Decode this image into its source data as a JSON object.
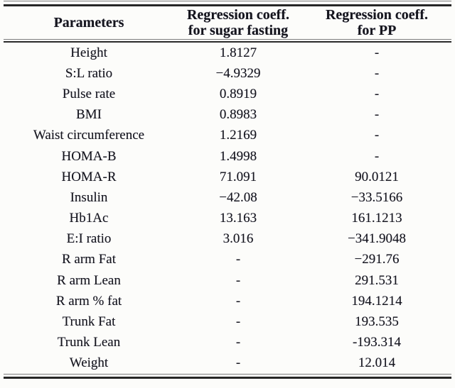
{
  "table": {
    "header": {
      "parameters": "Parameters",
      "col2_line1": "Regression coeff.",
      "col2_line2": "for sugar fasting",
      "col3_line1": "Regression coeff.",
      "col3_line2": "for PP"
    },
    "rows": [
      {
        "parameter": "Height",
        "sugar_fasting": "1.8127",
        "pp": "-"
      },
      {
        "parameter": "S:L ratio",
        "sugar_fasting": "−4.9329",
        "pp": "-"
      },
      {
        "parameter": "Pulse rate",
        "sugar_fasting": "0.8919",
        "pp": "-"
      },
      {
        "parameter": "BMI",
        "sugar_fasting": "0.8983",
        "pp": "-"
      },
      {
        "parameter": "Waist circumference",
        "sugar_fasting": "1.2169",
        "pp": "-"
      },
      {
        "parameter": "HOMA-B",
        "sugar_fasting": "1.4998",
        "pp": "-"
      },
      {
        "parameter": "HOMA-R",
        "sugar_fasting": "71.091",
        "pp": "90.0121"
      },
      {
        "parameter": "Insulin",
        "sugar_fasting": "−42.08",
        "pp": "−33.5166"
      },
      {
        "parameter": "Hb1Ac",
        "sugar_fasting": "13.163",
        "pp": "161.1213"
      },
      {
        "parameter": "E:I ratio",
        "sugar_fasting": "3.016",
        "pp": "−341.9048"
      },
      {
        "parameter": "R arm Fat",
        "sugar_fasting": "-",
        "pp": "−291.76"
      },
      {
        "parameter": "R arm Lean",
        "sugar_fasting": "-",
        "pp": "291.531"
      },
      {
        "parameter": "R arm % fat",
        "sugar_fasting": "-",
        "pp": "194.1214"
      },
      {
        "parameter": "Trunk Fat",
        "sugar_fasting": "-",
        "pp": "193.535"
      },
      {
        "parameter": "Trunk Lean",
        "sugar_fasting": "-",
        "pp": "-193.314"
      },
      {
        "parameter": "Weight",
        "sugar_fasting": "-",
        "pp": "12.014"
      }
    ]
  },
  "chart_data": {
    "type": "table",
    "columns": [
      "Parameters",
      "Regression coeff. for sugar fasting",
      "Regression coeff. for PP"
    ],
    "rows": [
      [
        "Height",
        "1.8127",
        "-"
      ],
      [
        "S:L ratio",
        "−4.9329",
        "-"
      ],
      [
        "Pulse rate",
        "0.8919",
        "-"
      ],
      [
        "BMI",
        "0.8983",
        "-"
      ],
      [
        "Waist circumference",
        "1.2169",
        "-"
      ],
      [
        "HOMA-B",
        "1.4998",
        "-"
      ],
      [
        "HOMA-R",
        "71.091",
        "90.0121"
      ],
      [
        "Insulin",
        "−42.08",
        "−33.5166"
      ],
      [
        "Hb1Ac",
        "13.163",
        "161.1213"
      ],
      [
        "E:I ratio",
        "3.016",
        "−341.9048"
      ],
      [
        "R arm Fat",
        "-",
        "−291.76"
      ],
      [
        "R arm Lean",
        "-",
        "291.531"
      ],
      [
        "R arm % fat",
        "-",
        "194.1214"
      ],
      [
        "Trunk Fat",
        "-",
        "193.535"
      ],
      [
        "Trunk Lean",
        "-",
        "-193.314"
      ],
      [
        "Weight",
        "-",
        "12.014"
      ]
    ]
  },
  "colors": {
    "text": "#15151d",
    "rule_thin": "#7e7e7e",
    "rule_thick": "#262626",
    "background": "#fcfcfa"
  }
}
